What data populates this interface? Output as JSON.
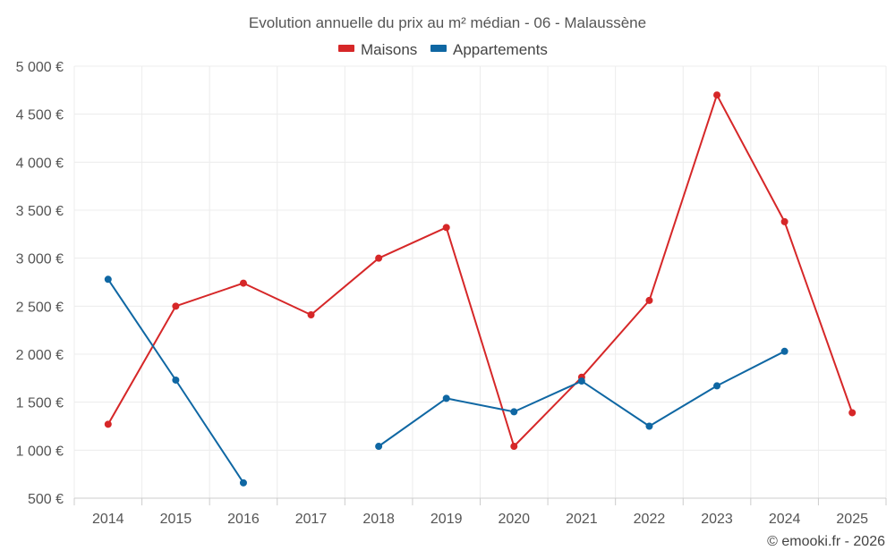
{
  "chart_data": {
    "type": "line",
    "title": "Evolution annuelle du prix au m² médian - 06 - Malaussène",
    "categories": [
      "2014",
      "2015",
      "2016",
      "2017",
      "2018",
      "2019",
      "2020",
      "2021",
      "2022",
      "2023",
      "2024",
      "2025"
    ],
    "series": [
      {
        "name": "Maisons",
        "color": "#d62728",
        "values": [
          1270,
          2500,
          2740,
          2410,
          3000,
          3320,
          1040,
          1760,
          2560,
          4700,
          3380,
          1390
        ]
      },
      {
        "name": "Appartements",
        "color": "#0f67a3",
        "values": [
          2780,
          1730,
          660,
          null,
          1040,
          1540,
          1400,
          1720,
          1250,
          1670,
          2030,
          null
        ]
      }
    ],
    "ylim": [
      500,
      5000
    ],
    "yticks": [
      "5 000 €",
      "4 500 €",
      "4 000 €",
      "3 500 €",
      "3 000 €",
      "2 500 €",
      "2 000 €",
      "1 500 €",
      "1 000 €",
      "500 €"
    ],
    "ytick_values": [
      5000,
      4500,
      4000,
      3500,
      3000,
      2500,
      2000,
      1500,
      1000,
      500
    ],
    "xlabel": "",
    "ylabel": "",
    "legend_position": "top-center",
    "grid": true
  },
  "copyright": "© emooki.fr - 2026"
}
